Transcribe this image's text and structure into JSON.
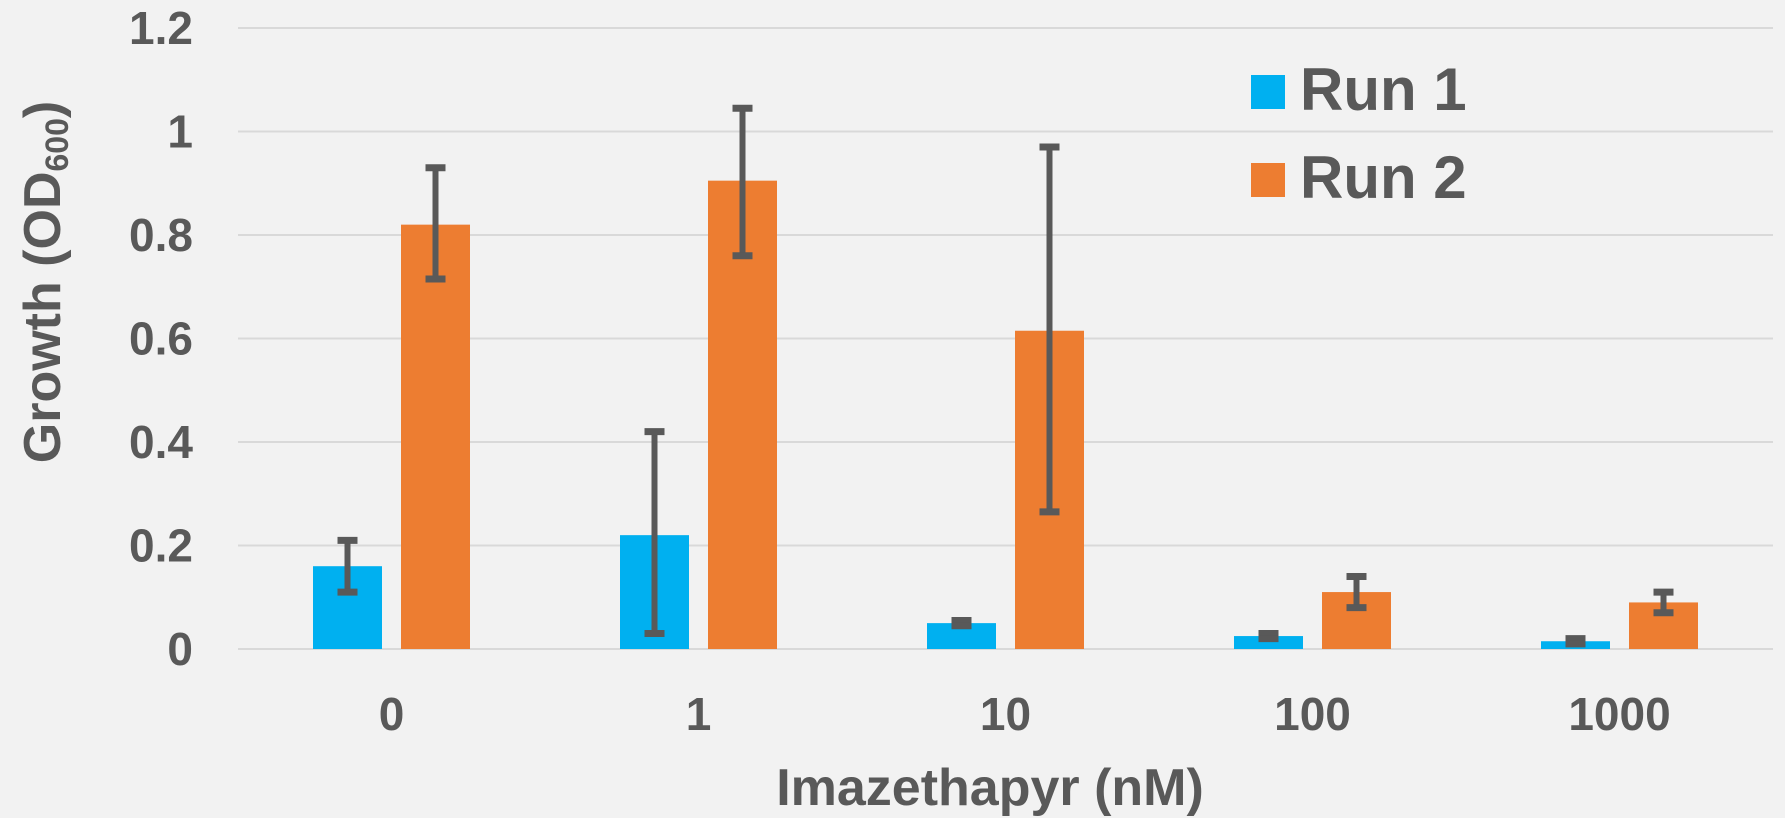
{
  "chart_data": {
    "type": "bar",
    "xlabel": "Imazethapyr (nM)",
    "ylabel": "Growth (OD",
    "ylabel_subscript": "600",
    "ylabel_close": ")",
    "categories": [
      "0",
      "1",
      "10",
      "100",
      "1000"
    ],
    "ylim": [
      0,
      1.2
    ],
    "yticks": [
      0,
      0.2,
      0.4,
      0.6,
      0.8,
      1,
      1.2
    ],
    "ytick_labels": [
      "0",
      "0.2",
      "0.4",
      "0.6",
      "0.8",
      "1",
      "1.2"
    ],
    "grid": true,
    "legend_position": "top-right",
    "series": [
      {
        "name": "Run 1",
        "color": "#00b0f0",
        "values": [
          0.16,
          0.22,
          0.05,
          0.025,
          0.015
        ],
        "error_low": [
          0.11,
          0.03,
          0.045,
          0.02,
          0.01
        ],
        "error_high": [
          0.21,
          0.42,
          0.055,
          0.03,
          0.02
        ]
      },
      {
        "name": "Run 2",
        "color": "#ed7d31",
        "values": [
          0.82,
          0.905,
          0.615,
          0.11,
          0.09
        ],
        "error_low": [
          0.715,
          0.76,
          0.265,
          0.08,
          0.07
        ],
        "error_high": [
          0.93,
          1.045,
          0.97,
          0.14,
          0.11
        ]
      }
    ],
    "colors": {
      "gridline": "#d9d9d9",
      "error_bar": "#595959",
      "text": "#595959"
    }
  }
}
